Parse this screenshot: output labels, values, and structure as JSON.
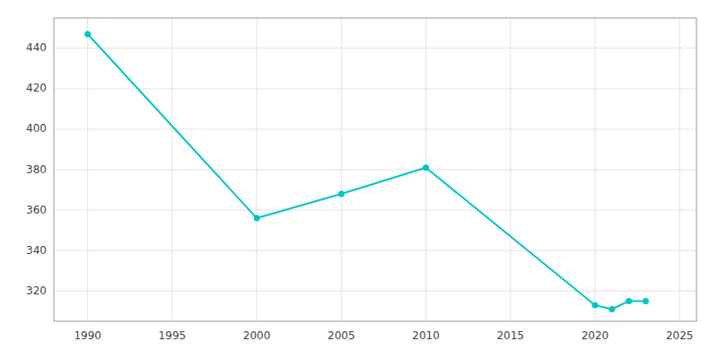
{
  "chart_data": {
    "type": "line",
    "x": [
      1990,
      2000,
      2005,
      2010,
      2020,
      2021,
      2022,
      2023
    ],
    "values": [
      447,
      356,
      368,
      381,
      313,
      311,
      315,
      315
    ],
    "color": "#00c5c8",
    "marker": "circle",
    "xlim": [
      1988,
      2026
    ],
    "ylim": [
      305,
      455
    ],
    "xticks": [
      1990,
      1995,
      2000,
      2005,
      2010,
      2015,
      2020,
      2025
    ],
    "yticks": [
      320,
      340,
      360,
      380,
      400,
      420,
      440
    ],
    "grid": true
  }
}
